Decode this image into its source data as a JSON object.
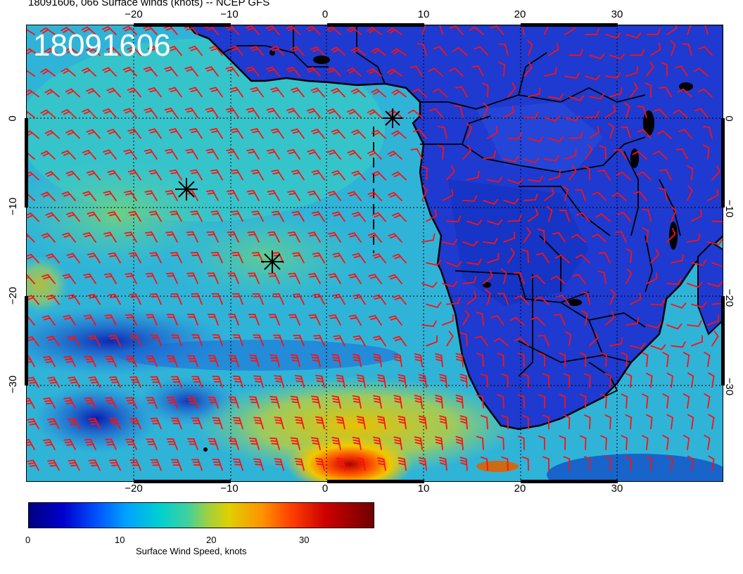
{
  "header": {
    "title": "18091606, 066 Surface winds (knots) -- NCEP GFS"
  },
  "map": {
    "stamp": "18091606"
  },
  "axes": {
    "x_ticks": [
      "−20",
      "−10",
      "0",
      "10",
      "20",
      "30"
    ],
    "y_ticks": [
      "0",
      "−10",
      "−20",
      "−30"
    ]
  },
  "colorbar": {
    "ticks": [
      "0",
      "10",
      "20",
      "30"
    ],
    "label": "Surface Wind Speed, knots"
  },
  "colors": {
    "barb": "#ff1010",
    "land_outline": "#000000"
  }
}
